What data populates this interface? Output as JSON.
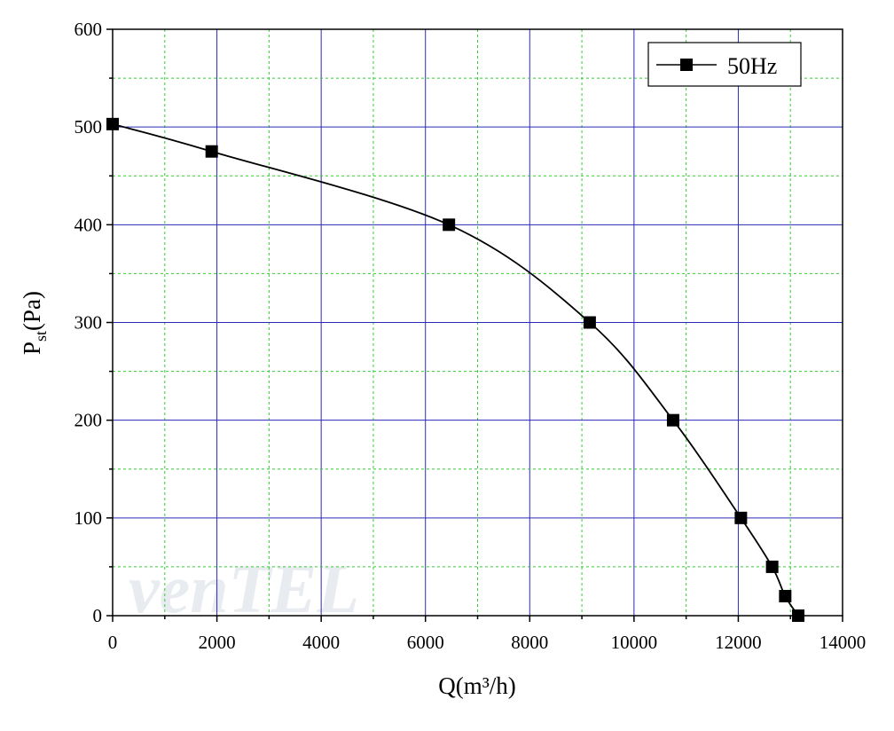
{
  "chart_data": {
    "type": "line",
    "x_label": "Q(m³/h)",
    "y_label": {
      "symbol": "P",
      "subscript": "st",
      "unit": "(Pa)"
    },
    "watermark": "venTEL",
    "x": [
      0,
      1900,
      6450,
      9150,
      10750,
      12050,
      12650,
      12900,
      13150
    ],
    "series": [
      {
        "name": "50Hz",
        "color": "#000000",
        "values": [
          503,
          475,
          400,
          300,
          200,
          100,
          50,
          20,
          0
        ]
      }
    ],
    "xlim": [
      0,
      14000
    ],
    "xticks": [
      0,
      2000,
      4000,
      6000,
      8000,
      10000,
      12000,
      14000
    ],
    "ylim": [
      0,
      600
    ],
    "yticks": [
      0,
      100,
      200,
      300,
      400,
      500,
      600
    ],
    "grid": true,
    "legend": "upper-right"
  }
}
